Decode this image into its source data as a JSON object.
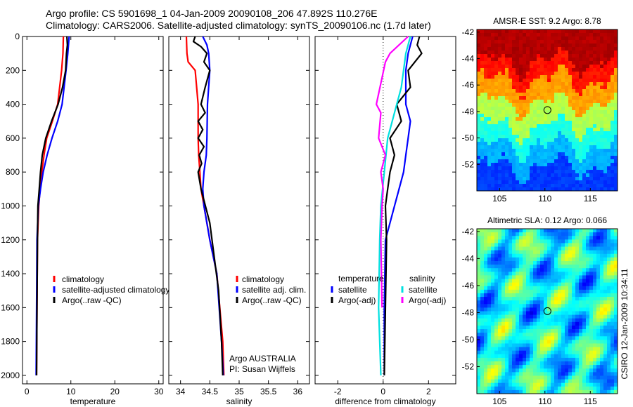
{
  "figure": {
    "title_line1": "Argo profile: CS 5901698_1 04-Jan-2009 20090108_206 47.892S 110.276E",
    "title_line2": "Climatology: CARS2006. Satellite-adjusted climatology: synTS_20090106.nc (1.7d later)"
  },
  "colors": {
    "climatology": "#ff0000",
    "satellite": "#0000ff",
    "argo": "#000000",
    "argo_salinity_diff": "#ff00ff",
    "satellite_salinity_diff": "#00e0e0"
  },
  "chart_data": [
    {
      "id": "temperature",
      "type": "line",
      "xlabel": "temperature",
      "ylabel": "",
      "xlim": [
        -1,
        31
      ],
      "ylim": [
        2050,
        0
      ],
      "y_reversed": true,
      "xticks": [
        0,
        10,
        20,
        30
      ],
      "yticks": [
        0,
        200,
        400,
        600,
        800,
        1000,
        1200,
        1400,
        1600,
        1800,
        2000
      ],
      "series": [
        {
          "name": "climatology",
          "color": "#ff0000",
          "x": [
            8.3,
            8.2,
            7.9,
            7.0,
            5.8,
            4.5,
            3.9,
            3.4,
            3.0,
            2.7,
            2.4,
            2.3,
            2.2
          ],
          "y": [
            0,
            100,
            200,
            400,
            500,
            600,
            700,
            800,
            900,
            1000,
            1200,
            1600,
            2000
          ]
        },
        {
          "name": "satellite-adjusted climatology",
          "color": "#0000ff",
          "x": [
            9.6,
            9.3,
            8.9,
            8.0,
            7.0,
            5.7,
            4.6,
            3.7,
            3.1,
            2.6,
            2.3,
            2.2,
            2.1
          ],
          "y": [
            0,
            100,
            200,
            400,
            500,
            600,
            700,
            800,
            900,
            1000,
            1200,
            1600,
            2000
          ]
        },
        {
          "name": "Argo(..raw -QC)",
          "color": "#000000",
          "x": [
            9.1,
            9.2,
            9.0,
            8.8,
            8.1,
            7.1,
            5.6,
            4.3,
            3.5,
            3.1,
            2.8,
            2.5,
            2.4,
            2.3,
            2.2
          ],
          "y": [
            0,
            50,
            100,
            200,
            300,
            400,
            500,
            600,
            700,
            800,
            900,
            1000,
            1200,
            1600,
            2000
          ]
        }
      ],
      "legend": [
        {
          "label": "climatology",
          "color": "#ff0000"
        },
        {
          "label": "satellite-adjusted climatology",
          "color": "#0000ff"
        },
        {
          "label": "Argo(..raw -QC)",
          "color": "#000000"
        }
      ],
      "legend_position": "bottom-right"
    },
    {
      "id": "salinity",
      "type": "line",
      "xlabel": "salinity",
      "ylabel": "",
      "xlim": [
        33.8,
        36.2
      ],
      "ylim": [
        2050,
        0
      ],
      "y_reversed": true,
      "xticks": [
        34,
        34.5,
        35,
        35.5,
        36
      ],
      "xticklabels": [
        "34",
        "34.5",
        "35",
        "35.5",
        "36"
      ],
      "series": [
        {
          "name": "climatology",
          "color": "#ff0000",
          "x": [
            34.1,
            34.11,
            34.13,
            34.25,
            34.3,
            34.3,
            34.31,
            34.33,
            34.35,
            34.4,
            34.5,
            34.62,
            34.72,
            34.74
          ],
          "y": [
            0,
            100,
            150,
            200,
            400,
            600,
            700,
            800,
            900,
            1000,
            1200,
            1400,
            1800,
            2000
          ]
        },
        {
          "name": "satellite adj. clim.",
          "color": "#0000ff",
          "x": [
            34.38,
            34.45,
            34.48,
            34.5,
            34.46,
            34.45,
            34.44,
            34.4,
            34.38,
            34.4,
            34.5,
            34.62,
            34.7,
            34.73
          ],
          "y": [
            0,
            50,
            100,
            200,
            400,
            600,
            700,
            800,
            900,
            1000,
            1200,
            1400,
            1800,
            2000
          ]
        },
        {
          "name": "Argo(..raw -QC)",
          "color": "#000000",
          "x": [
            34.25,
            34.22,
            34.35,
            34.45,
            34.4,
            34.5,
            34.42,
            34.35,
            34.42,
            34.3,
            34.38,
            34.3,
            34.4,
            34.32,
            34.36,
            34.3,
            34.35,
            34.5,
            34.65,
            34.7,
            34.72
          ],
          "y": [
            0,
            30,
            60,
            100,
            150,
            200,
            300,
            400,
            450,
            500,
            550,
            600,
            650,
            700,
            750,
            800,
            900,
            1100,
            1500,
            1800,
            2000
          ]
        }
      ],
      "legend": [
        {
          "label": "climatology",
          "color": "#ff0000"
        },
        {
          "label": "satellite adj. clim.",
          "color": "#0000ff"
        },
        {
          "label": "Argo(..raw -QC)",
          "color": "#000000"
        }
      ],
      "annotation_lines": [
        "Argo AUSTRALIA",
        "PI: Susan Wijffels"
      ]
    },
    {
      "id": "difference",
      "type": "line",
      "xlabel": "difference from climatology",
      "ylabel": "",
      "xlim": [
        -3,
        3.2
      ],
      "ylim": [
        2050,
        0
      ],
      "y_reversed": true,
      "xticks": [
        -2,
        0,
        2
      ],
      "reference_line_x": 0,
      "series": [
        {
          "name": "temperature satellite",
          "color": "#0000ff",
          "x": [
            1.3,
            1.1,
            1.0,
            1.0,
            1.2,
            1.1,
            1.0,
            0.9,
            0.7,
            0.5,
            0.3,
            0.1,
            0.05,
            0.05
          ],
          "y": [
            0,
            100,
            200,
            400,
            500,
            600,
            700,
            800,
            900,
            1000,
            1100,
            1200,
            1600,
            2000
          ]
        },
        {
          "name": "temperature Argo(-adj)",
          "color": "#000000",
          "x": [
            1.6,
            1.5,
            1.7,
            1.1,
            1.2,
            0.6,
            0.8,
            0.3,
            0.5,
            0.3,
            0.2,
            0.1,
            0.15,
            0.1,
            0.05
          ],
          "y": [
            0,
            50,
            100,
            200,
            300,
            400,
            500,
            600,
            700,
            800,
            900,
            1000,
            1200,
            1600,
            2000
          ]
        },
        {
          "name": "salinity satellite",
          "color": "#00e0e0",
          "x": [
            1.2,
            1.0,
            0.9,
            0.8,
            0.6,
            0.4,
            0.2,
            0.05,
            -0.1,
            -0.15,
            -0.2,
            -0.1
          ],
          "y": [
            0,
            100,
            200,
            300,
            400,
            500,
            600,
            800,
            1000,
            1200,
            1600,
            2000
          ]
        },
        {
          "name": "salinity Argo(-adj)",
          "color": "#ff00ff",
          "x": [
            1.1,
            0.3,
            0.1,
            -0.3,
            -0.1,
            -0.2,
            0.1,
            -0.1,
            0.0,
            -0.05,
            -0.1,
            -0.05
          ],
          "y": [
            0,
            100,
            150,
            400,
            450,
            600,
            700,
            800,
            900,
            1000,
            1200,
            1600
          ]
        }
      ],
      "legend": [
        {
          "header": "temperature",
          "label": "satellite",
          "color": "#0000ff"
        },
        {
          "header": "",
          "label": "Argo(-adj)",
          "color": "#000000"
        },
        {
          "header": "salinity",
          "label": "satellite",
          "color": "#00e0e0"
        },
        {
          "header": "",
          "label": "Argo(-adj)",
          "color": "#ff00ff"
        }
      ]
    },
    {
      "id": "sst_map",
      "type": "heatmap",
      "title": "AMSR-E SST: 9.2 Argo: 8.78",
      "xlim": [
        102.5,
        118
      ],
      "ylim": [
        -54,
        -41.8
      ],
      "xticks": [
        105,
        110,
        115
      ],
      "yticks": [
        -42,
        -44,
        -46,
        -48,
        -50,
        -52
      ],
      "profile_marker": {
        "lon": 110.276,
        "lat": -47.892
      },
      "colormap": "jet"
    },
    {
      "id": "sla_map",
      "type": "heatmap",
      "title": "Altimetric SLA: 0.12 Argo: 0.066",
      "xlim": [
        102.5,
        118
      ],
      "ylim": [
        -54,
        -41.8
      ],
      "xticks": [
        105,
        110,
        115
      ],
      "yticks": [
        -42,
        -44,
        -46,
        -48,
        -50,
        -52
      ],
      "profile_marker": {
        "lon": 110.276,
        "lat": -47.892
      },
      "colormap": "jet",
      "side_label": "CSIRO 12-Jan-2009 10:34:11"
    }
  ]
}
